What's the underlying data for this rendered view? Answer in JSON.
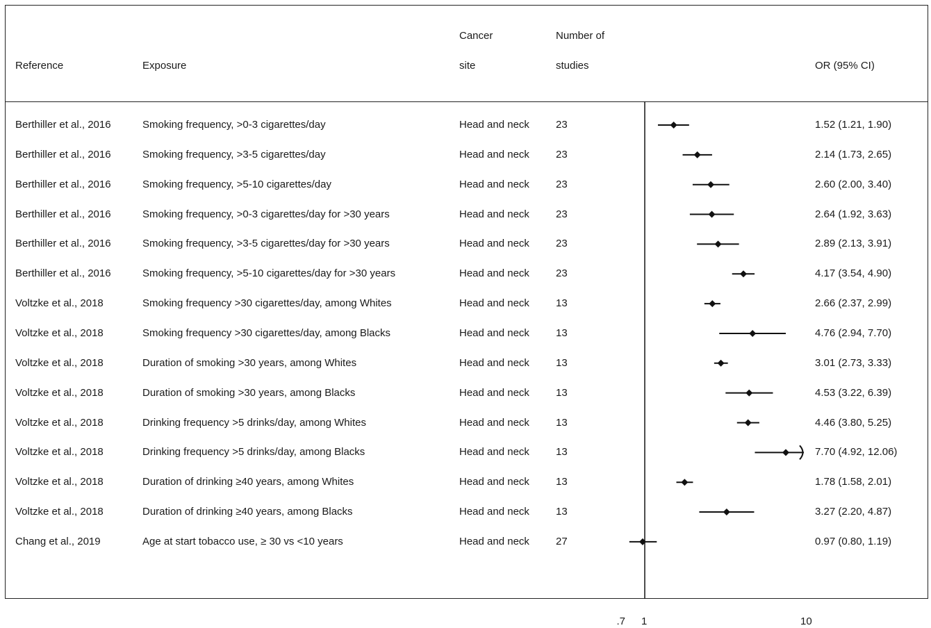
{
  "columns": {
    "reference": "Reference",
    "exposure": "Exposure",
    "cancer_site_line1": "Cancer",
    "cancer_site_line2": "site",
    "studies_line1": "Number of",
    "studies_line2": "studies",
    "or_ci": "OR (95% CI)"
  },
  "chart_data": {
    "type": "forest",
    "x_scale": "log",
    "reference_line": 1,
    "xlim": [
      0.6,
      17
    ],
    "x_ticks": [
      {
        "value": 0.7,
        "label": ".7"
      },
      {
        "value": 1,
        "label": "1"
      },
      {
        "value": 10,
        "label": "10"
      }
    ],
    "rows": [
      {
        "reference": "Berthiller et al., 2016",
        "exposure": "Smoking frequency, >0-3 cigarettes/day",
        "site": "Head and neck",
        "studies": "23",
        "or": 1.52,
        "lo": 1.21,
        "hi": 1.9,
        "label": "1.52 (1.21, 1.90)"
      },
      {
        "reference": "Berthiller et al., 2016",
        "exposure": "Smoking frequency, >3-5 cigarettes/day",
        "site": "Head and neck",
        "studies": "23",
        "or": 2.14,
        "lo": 1.73,
        "hi": 2.65,
        "label": "2.14 (1.73, 2.65)"
      },
      {
        "reference": "Berthiller et al., 2016",
        "exposure": "Smoking frequency, >5-10 cigarettes/day",
        "site": "Head and neck",
        "studies": "23",
        "or": 2.6,
        "lo": 2.0,
        "hi": 3.4,
        "label": "2.60 (2.00, 3.40)"
      },
      {
        "reference": "Berthiller et al., 2016",
        "exposure": "Smoking frequency, >0-3 cigarettes/day for >30 years",
        "site": "Head and neck",
        "studies": "23",
        "or": 2.64,
        "lo": 1.92,
        "hi": 3.63,
        "label": "2.64 (1.92, 3.63)"
      },
      {
        "reference": "Berthiller et al., 2016",
        "exposure": "Smoking frequency, >3-5 cigarettes/day for >30 years",
        "site": "Head and neck",
        "studies": "23",
        "or": 2.89,
        "lo": 2.13,
        "hi": 3.91,
        "label": "2.89 (2.13, 3.91)"
      },
      {
        "reference": "Berthiller et al., 2016",
        "exposure": "Smoking frequency, >5-10 cigarettes/day for >30 years",
        "site": "Head and neck",
        "studies": "23",
        "or": 4.17,
        "lo": 3.54,
        "hi": 4.9,
        "label": "4.17 (3.54, 4.90)"
      },
      {
        "reference": "Voltzke et al., 2018",
        "exposure": "Smoking frequency >30 cigarettes/day, among Whites",
        "site": "Head and neck",
        "studies": "13",
        "or": 2.66,
        "lo": 2.37,
        "hi": 2.99,
        "label": "2.66 (2.37, 2.99)"
      },
      {
        "reference": "Voltzke et al., 2018",
        "exposure": "Smoking frequency >30 cigarettes/day, among Blacks",
        "site": "Head and neck",
        "studies": "13",
        "or": 4.76,
        "lo": 2.94,
        "hi": 7.7,
        "label": "4.76 (2.94, 7.70)"
      },
      {
        "reference": "Voltzke et al., 2018",
        "exposure": "Duration of smoking >30 years, among Whites",
        "site": "Head and neck",
        "studies": "13",
        "or": 3.01,
        "lo": 2.73,
        "hi": 3.33,
        "label": "3.01 (2.73, 3.33)"
      },
      {
        "reference": "Voltzke et al., 2018",
        "exposure": "Duration of smoking >30 years, among Blacks",
        "site": "Head and neck",
        "studies": "13",
        "or": 4.53,
        "lo": 3.22,
        "hi": 6.39,
        "label": "4.53 (3.22, 6.39)"
      },
      {
        "reference": "Voltzke et al., 2018",
        "exposure": "Drinking frequency >5 drinks/day, among Whites",
        "site": "Head and neck",
        "studies": "13",
        "or": 4.46,
        "lo": 3.8,
        "hi": 5.25,
        "label": "4.46 (3.80, 5.25)"
      },
      {
        "reference": "Voltzke et al., 2018",
        "exposure": "Drinking frequency >5 drinks/day, among Blacks",
        "site": "Head and neck",
        "studies": "13",
        "or": 7.7,
        "lo": 4.92,
        "hi": 12.06,
        "label": "7.70 (4.92, 12.06)",
        "clipped_upper": true
      },
      {
        "reference": "Voltzke et al., 2018",
        "exposure": "Duration of drinking ≥40 years, among Whites",
        "site": "Head and neck",
        "studies": "13",
        "or": 1.78,
        "lo": 1.58,
        "hi": 2.01,
        "label": "1.78 (1.58, 2.01)"
      },
      {
        "reference": "Voltzke et al., 2018",
        "exposure": "Duration of drinking ≥40 years, among Blacks",
        "site": "Head and neck",
        "studies": "13",
        "or": 3.27,
        "lo": 2.2,
        "hi": 4.87,
        "label": "3.27 (2.20, 4.87)"
      },
      {
        "reference": "Chang et al., 2019",
        "exposure": "Age at start tobacco use, ≥ 30  vs <10 years",
        "site": "Head and neck",
        "studies": "27",
        "or": 0.97,
        "lo": 0.8,
        "hi": 1.19,
        "label": "0.97 (0.80, 1.19)"
      }
    ]
  }
}
